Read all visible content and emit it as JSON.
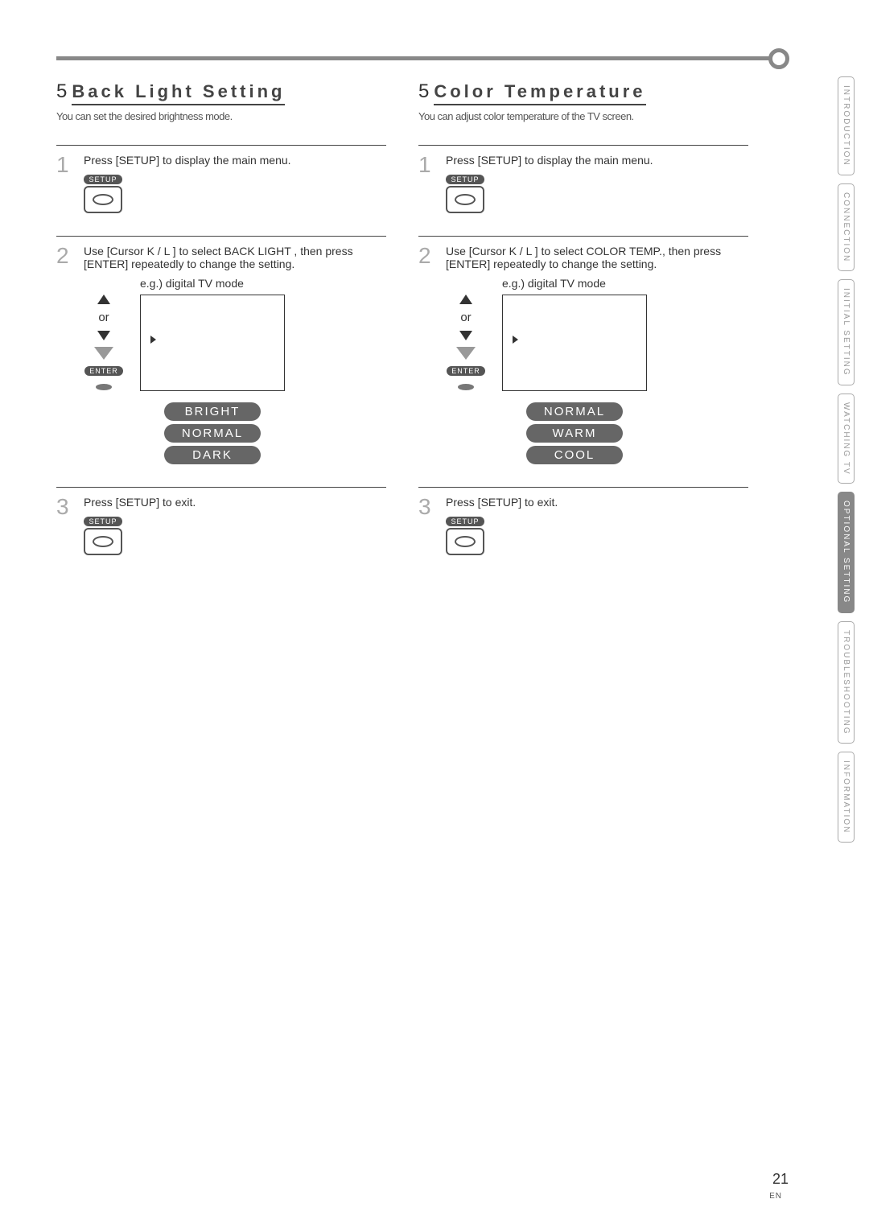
{
  "page_number": "21",
  "page_lang": "EN",
  "side_tabs": [
    {
      "label": "INTRODUCTION",
      "active": false
    },
    {
      "label": "CONNECTION",
      "active": false
    },
    {
      "label": "INITIAL SETTING",
      "active": false
    },
    {
      "label": "WATCHING TV",
      "active": false
    },
    {
      "label": "OPTIONAL SETTING",
      "active": true
    },
    {
      "label": "TROUBLESHOOTING",
      "active": false
    },
    {
      "label": "INFORMATION",
      "active": false
    }
  ],
  "left": {
    "section_number": "5",
    "title": "Back Light Setting",
    "desc": "You can set the desired brightness mode.",
    "step1": {
      "num": "1",
      "text": "Press [SETUP] to display the main menu.",
      "button_label": "SETUP"
    },
    "step2": {
      "num": "2",
      "text": "Use [Cursor K / L ] to select  BACK LIGHT , then press [ENTER] repeatedly to change the setting.",
      "eg_label": "e.g.) digital TV mode",
      "or_label": "or",
      "enter_label": "ENTER",
      "options": [
        "BRIGHT",
        "NORMAL",
        "DARK"
      ]
    },
    "step3": {
      "num": "3",
      "text": "Press [SETUP] to exit.",
      "button_label": "SETUP"
    }
  },
  "right": {
    "section_number": "5",
    "title": "Color Temperature",
    "desc": "You can adjust color temperature of the TV screen.",
    "step1": {
      "num": "1",
      "text": "Press [SETUP] to display the main menu.",
      "button_label": "SETUP"
    },
    "step2": {
      "num": "2",
      "text": "Use [Cursor K / L ] to select  COLOR TEMP., then press [ENTER] repeatedly to change the setting.",
      "eg_label": "e.g.) digital TV mode",
      "or_label": "or",
      "enter_label": "ENTER",
      "options": [
        "NORMAL",
        "WARM",
        "COOL"
      ]
    },
    "step3": {
      "num": "3",
      "text": "Press [SETUP] to exit.",
      "button_label": "SETUP"
    }
  }
}
